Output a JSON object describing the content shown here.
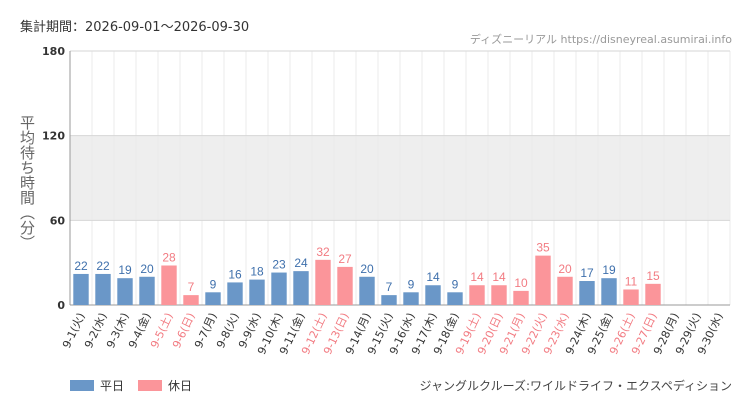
{
  "header": {
    "period_label": "集計期間：",
    "period_value": "2026-09-01〜2026-09-30",
    "source": "ディズニーリアル https://disneyreal.asumirai.info"
  },
  "legend": {
    "weekday_label": "平日",
    "holiday_label": "休日"
  },
  "footer": {
    "attraction": "ジャングルクルーズ:ワイルドライフ・エクスペディション"
  },
  "colors": {
    "weekday": "#6a97c8",
    "holiday": "#fb959a",
    "weekday_text": "#3f70ac",
    "holiday_text": "#f27b82",
    "band": "#eeeeee"
  },
  "chart_data": {
    "type": "bar",
    "ylabel": "平均待ち時間（分）",
    "ylim": [
      0,
      180
    ],
    "yticks": [
      0,
      60,
      120,
      180
    ],
    "shaded_band": [
      60,
      120
    ],
    "grid": true,
    "legend_position": "bottom-left",
    "categories": [
      "9-1(火)",
      "9-2(水)",
      "9-3(木)",
      "9-4(金)",
      "9-5(土)",
      "9-6(日)",
      "9-7(月)",
      "9-8(火)",
      "9-9(水)",
      "9-10(木)",
      "9-11(金)",
      "9-12(土)",
      "9-13(日)",
      "9-14(月)",
      "9-15(火)",
      "9-16(水)",
      "9-17(木)",
      "9-18(金)",
      "9-19(土)",
      "9-20(日)",
      "9-21(月)",
      "9-22(火)",
      "9-23(水)",
      "9-24(木)",
      "9-25(金)",
      "9-26(土)",
      "9-27(日)",
      "9-28(月)",
      "9-29(火)",
      "9-30(水)"
    ],
    "values": [
      22,
      22,
      19,
      20,
      28,
      7,
      9,
      16,
      18,
      23,
      24,
      32,
      27,
      20,
      7,
      9,
      14,
      9,
      14,
      14,
      10,
      35,
      20,
      17,
      19,
      11,
      15,
      null,
      null,
      null
    ],
    "day_type": [
      "weekday",
      "weekday",
      "weekday",
      "weekday",
      "holiday",
      "holiday",
      "weekday",
      "weekday",
      "weekday",
      "weekday",
      "weekday",
      "holiday",
      "holiday",
      "weekday",
      "weekday",
      "weekday",
      "weekday",
      "weekday",
      "holiday",
      "holiday",
      "holiday",
      "holiday",
      "holiday",
      "weekday",
      "weekday",
      "holiday",
      "holiday",
      "weekday",
      "weekday",
      "weekday"
    ]
  }
}
